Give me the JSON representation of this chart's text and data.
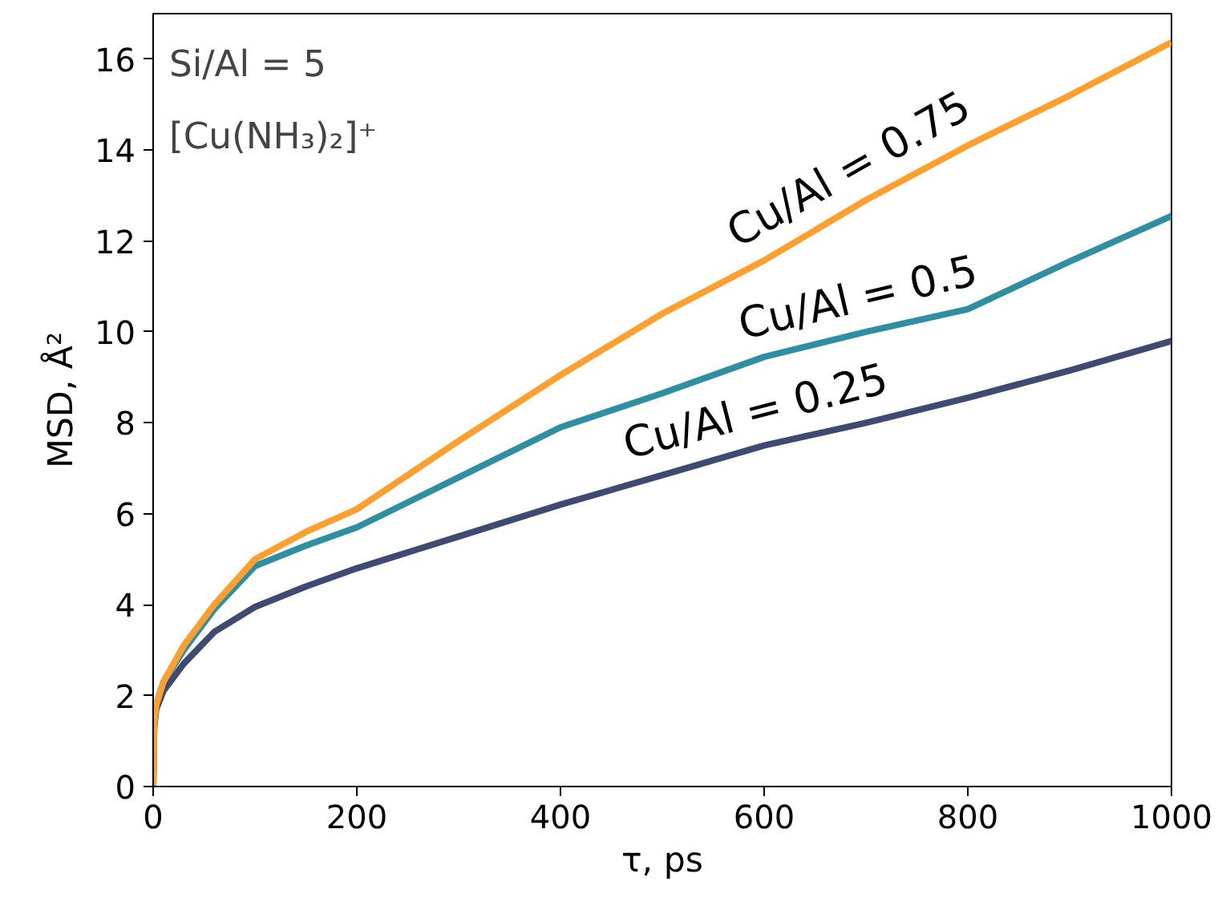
{
  "chart_data": {
    "type": "line",
    "xlabel": "τ, ps",
    "ylabel": "MSD, Å²",
    "annotations": [
      "Si/Al = 5",
      "[Cu(NH₃)₂]⁺"
    ],
    "x": [
      0,
      1,
      3,
      10,
      30,
      60,
      100,
      150,
      200,
      300,
      400,
      500,
      600,
      700,
      800,
      900,
      1000
    ],
    "series": [
      {
        "name": "Cu/Al = 0.25",
        "color": "#3f4a72",
        "values": [
          0,
          1.3,
          1.7,
          2.1,
          2.7,
          3.4,
          3.95,
          4.4,
          4.8,
          5.5,
          6.2,
          6.85,
          7.5,
          8.0,
          8.55,
          9.15,
          9.8
        ]
      },
      {
        "name": "Cu/Al = 0.5",
        "color": "#2e8fa3",
        "values": [
          0,
          1.4,
          1.8,
          2.3,
          3.0,
          3.9,
          4.85,
          5.3,
          5.7,
          6.8,
          7.9,
          8.65,
          9.45,
          10.0,
          10.5,
          11.55,
          12.55
        ]
      },
      {
        "name": "Cu/Al = 0.75",
        "color": "#ff9f2e",
        "values": [
          0,
          1.4,
          1.8,
          2.3,
          3.1,
          4.0,
          5.0,
          5.6,
          6.1,
          7.6,
          9.05,
          10.4,
          11.57,
          12.9,
          14.1,
          15.2,
          16.37
        ]
      }
    ],
    "xlim": [
      0,
      1000
    ],
    "ylim": [
      0,
      17
    ],
    "xticks": [
      0,
      200,
      400,
      600,
      800,
      1000
    ],
    "yticks": [
      0,
      2,
      4,
      6,
      8,
      10,
      12,
      14,
      16
    ],
    "grid": false,
    "legend": false,
    "line_style": "solid",
    "marker": "none"
  }
}
